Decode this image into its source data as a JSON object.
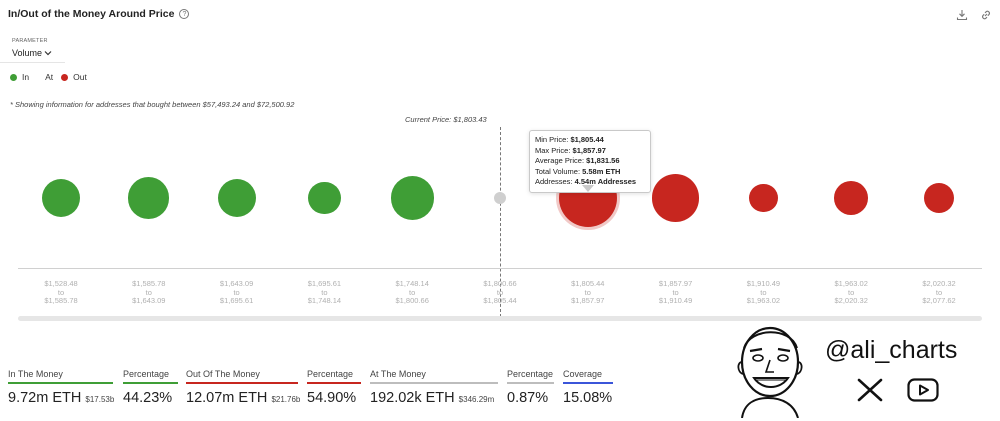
{
  "header": {
    "title": "In/Out of the Money Around Price",
    "help_icon": "question-circle-icon",
    "actions": [
      "download-icon",
      "link-icon"
    ]
  },
  "parameter": {
    "label": "PARAMETER",
    "value": "Volume"
  },
  "legend": [
    {
      "label": "In",
      "color": "#3f9e36"
    },
    {
      "label": "At",
      "color": "#bdbdbd"
    },
    {
      "label": "Out",
      "color": "#c7261f"
    }
  ],
  "note": "* Showing information for addresses that bought between $57,493.24 and $72,500.92",
  "current_price": "Current Price: $1,803.43",
  "chart_data": {
    "type": "scatter",
    "encoding": "bubble size = volume",
    "bubbles": [
      {
        "from": "$1,528.48",
        "to": "$1,585.78",
        "status": "in",
        "size": 1.0
      },
      {
        "from": "$1,585.78",
        "to": "$1,643.09",
        "status": "in",
        "size": 1.09
      },
      {
        "from": "$1,643.09",
        "to": "$1,695.61",
        "status": "in",
        "size": 1.0
      },
      {
        "from": "$1,695.61",
        "to": "$1,748.14",
        "status": "in",
        "size": 0.86
      },
      {
        "from": "$1,748.14",
        "to": "$1,800.66",
        "status": "in",
        "size": 1.14
      },
      {
        "from": "$1,800.66",
        "to": "$1,805.44",
        "status": "at",
        "size": 0.32
      },
      {
        "from": "$1,805.44",
        "to": "$1,857.97",
        "status": "out",
        "size": 1.54
      },
      {
        "from": "$1,857.97",
        "to": "$1,910.49",
        "status": "out",
        "size": 1.24
      },
      {
        "from": "$1,910.49",
        "to": "$1,963.02",
        "status": "out",
        "size": 0.76
      },
      {
        "from": "$1,963.02",
        "to": "$2,020.32",
        "status": "out",
        "size": 0.89
      },
      {
        "from": "$2,020.32",
        "to": "$2,077.62",
        "status": "out",
        "size": 0.81
      }
    ],
    "range_joiner": "to",
    "colors": {
      "in": "#3f9e36",
      "at": "#cfcfcf",
      "out": "#c7261f"
    }
  },
  "tooltip": {
    "min_label": "Min Price:",
    "min_value": "$1,805.44",
    "max_label": "Max Price:",
    "max_value": "$1,857.97",
    "avg_label": "Average Price:",
    "avg_value": "$1,831.56",
    "vol_label": "Total Volume:",
    "vol_value": "5.58m ETH",
    "addr_label": "Addresses:",
    "addr_value": "4.54m Addresses"
  },
  "stats": [
    {
      "label": "In The Money",
      "value": "9.72m ETH",
      "sub": "$17.53b",
      "color": "#3f9e36"
    },
    {
      "label": "Percentage",
      "value": "44.23%",
      "color": "#3f9e36"
    },
    {
      "label": "Out Of The Money",
      "value": "12.07m ETH",
      "sub": "$21.76b",
      "color": "#c7261f"
    },
    {
      "label": "Percentage",
      "value": "54.90%",
      "color": "#c7261f"
    },
    {
      "label": "At The Money",
      "value": "192.02k ETH",
      "sub": "$346.29m",
      "color": "#bdbdbd"
    },
    {
      "label": "Percentage",
      "value": "0.87%",
      "color": "#bdbdbd"
    },
    {
      "label": "Coverage",
      "value": "15.08%",
      "color": "#3b55d9"
    }
  ],
  "branding": {
    "handle": "@ali_charts",
    "icons": [
      "caricature-portrait-icon",
      "x-logo-icon",
      "youtube-play-icon"
    ]
  }
}
